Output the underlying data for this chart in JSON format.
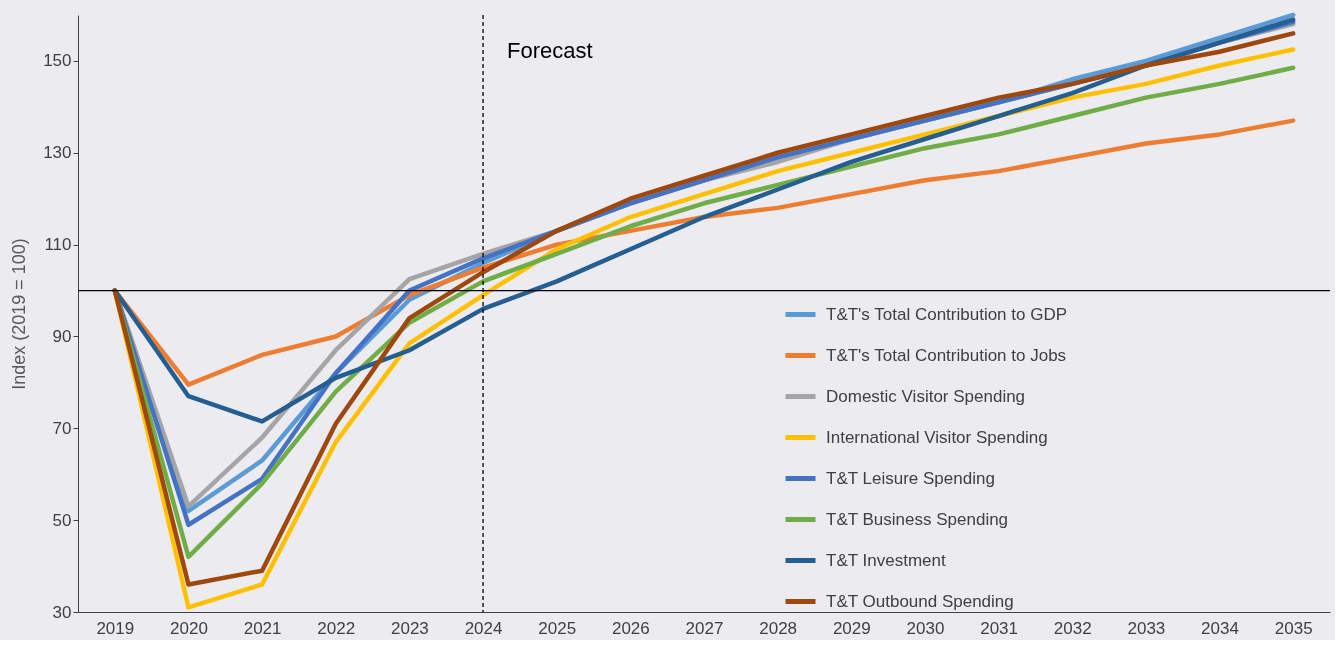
{
  "chart_data": {
    "type": "line",
    "ylabel": "Index (2019 = 100)",
    "categories": [
      "2019",
      "2020",
      "2021",
      "2022",
      "2023",
      "2024",
      "2025",
      "2026",
      "2027",
      "2028",
      "2029",
      "2030",
      "2031",
      "2032",
      "2033",
      "2034",
      "2035"
    ],
    "series": [
      {
        "name": "T&T's Total Contribution to GDP",
        "color": "#5b9bd5",
        "values": [
          100,
          52,
          63,
          82,
          98,
          106,
          113,
          119,
          124,
          129,
          133,
          137,
          141,
          146,
          150,
          155,
          160
        ]
      },
      {
        "name": "T&T's Total Contribution to Jobs",
        "color": "#ed7d31",
        "values": [
          100,
          79.5,
          86,
          90,
          99,
          105,
          110,
          113,
          116,
          118,
          121,
          124,
          126,
          129,
          132,
          134,
          137
        ]
      },
      {
        "name": "Domestic Visitor Spending",
        "color": "#a5a5a5",
        "values": [
          100,
          53,
          68,
          87,
          102.5,
          108,
          113,
          119,
          124,
          128,
          133,
          137,
          141,
          145,
          149,
          154,
          158
        ]
      },
      {
        "name": "International Visitor Spending",
        "color": "#ffc000",
        "values": [
          100,
          31,
          36,
          67,
          88.5,
          99,
          109,
          116,
          121,
          126,
          130,
          134,
          138,
          142,
          145,
          149,
          152.5
        ]
      },
      {
        "name": "T&T Leisure Spending",
        "color": "#4472c4",
        "values": [
          100,
          49,
          59,
          82,
          100,
          107,
          113,
          119,
          124,
          129,
          133,
          137,
          141,
          145,
          149,
          154,
          158.5
        ]
      },
      {
        "name": "T&T Business Spending",
        "color": "#70ad47",
        "values": [
          100,
          42,
          58,
          78,
          93,
          102,
          108,
          114,
          119,
          123,
          127,
          131,
          134,
          138,
          142,
          145,
          148.5
        ]
      },
      {
        "name": "T&T Investment",
        "color": "#255e91",
        "values": [
          100,
          77,
          71.5,
          81,
          87,
          96,
          102,
          109,
          116,
          122,
          128,
          133,
          138,
          143,
          149,
          154,
          159
        ]
      },
      {
        "name": "T&T Outbound Spending",
        "color": "#9e480e",
        "values": [
          100,
          36,
          39,
          71,
          94,
          104,
          113,
          120,
          125,
          130,
          134,
          138,
          142,
          145,
          149,
          152,
          156
        ]
      }
    ],
    "ylim": [
      30,
      160
    ],
    "yticks": [
      30,
      50,
      70,
      90,
      110,
      130,
      150
    ],
    "ref_lines": [
      {
        "axis": "y",
        "value": 100,
        "label": null,
        "color": "#000000",
        "line_style": "solid"
      },
      {
        "axis": "x",
        "value": "2024",
        "label": "Forecast",
        "color": "#000000",
        "line_style": "dashed"
      }
    ],
    "legend": "bottom right",
    "grid": false,
    "marker": "none",
    "line_style": "solid"
  }
}
